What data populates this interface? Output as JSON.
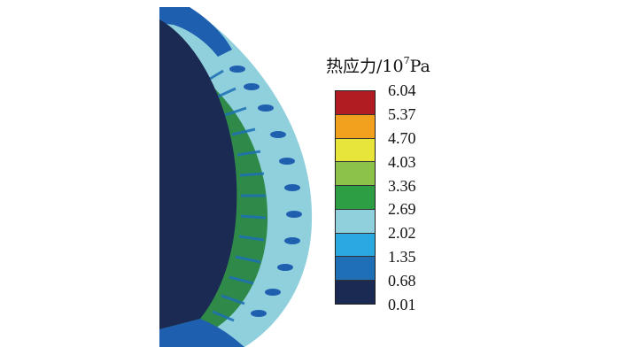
{
  "legend": {
    "title_main": "热应力/10",
    "title_exp": "7",
    "title_unit": "Pa",
    "ticks": [
      "6.04",
      "5.37",
      "4.70",
      "4.03",
      "3.36",
      "2.69",
      "2.02",
      "1.35",
      "0.68",
      "0.01"
    ],
    "colors": [
      "#b01c22",
      "#f2a11f",
      "#e8e53a",
      "#8cc24a",
      "#2e9e44",
      "#8fd0dc",
      "#2aa8e0",
      "#1e6fb6",
      "#1a2a52"
    ]
  },
  "contour_colors": {
    "core": "#1a2a52",
    "ring": "#8fd0dc",
    "hot_spots": "#1e5fb0",
    "fins": "#2e9e44",
    "rim": "#2f8a4a"
  }
}
